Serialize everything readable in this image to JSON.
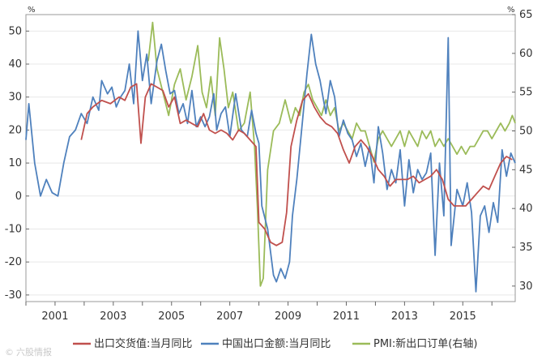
{
  "chart_data": {
    "type": "line",
    "left_axis": {
      "unit": "%",
      "range": [
        -32,
        55
      ],
      "ticks": [
        -30,
        -20,
        -10,
        0,
        10,
        20,
        30,
        40,
        50
      ]
    },
    "right_axis": {
      "unit": "%",
      "range": [
        28,
        65
      ],
      "ticks": [
        30,
        35,
        40,
        45,
        50,
        55,
        60,
        65
      ]
    },
    "x_axis": {
      "range": [
        2000.0,
        2016.8
      ],
      "ticks": [
        2001,
        2003,
        2005,
        2007,
        2009,
        2011,
        2013,
        2015
      ],
      "tick_labels": [
        "2001",
        "2003",
        "2005",
        "2007",
        "2009",
        "2011",
        "2013",
        "2015"
      ]
    },
    "grid": true,
    "legend_position": "bottom",
    "series": [
      {
        "name": "出口交货值:当月同比",
        "axis": "left",
        "color": "#c0504d",
        "points": [
          [
            2001.9,
            17
          ],
          [
            2002.1,
            25
          ],
          [
            2002.3,
            27
          ],
          [
            2002.6,
            29
          ],
          [
            2002.9,
            28
          ],
          [
            2003.2,
            30
          ],
          [
            2003.4,
            29
          ],
          [
            2003.6,
            33
          ],
          [
            2003.8,
            34
          ],
          [
            2003.95,
            16
          ],
          [
            2004.1,
            30
          ],
          [
            2004.3,
            34
          ],
          [
            2004.5,
            33
          ],
          [
            2004.7,
            32
          ],
          [
            2004.9,
            27
          ],
          [
            2005.1,
            30
          ],
          [
            2005.3,
            22
          ],
          [
            2005.5,
            23
          ],
          [
            2005.7,
            22
          ],
          [
            2005.9,
            21
          ],
          [
            2006.1,
            25
          ],
          [
            2006.3,
            20
          ],
          [
            2006.5,
            19
          ],
          [
            2006.7,
            20
          ],
          [
            2006.9,
            19
          ],
          [
            2007.1,
            17
          ],
          [
            2007.3,
            20
          ],
          [
            2007.5,
            19
          ],
          [
            2007.7,
            17
          ],
          [
            2007.9,
            15
          ],
          [
            2008.0,
            -8
          ],
          [
            2008.2,
            -10
          ],
          [
            2008.4,
            -14
          ],
          [
            2008.6,
            -15
          ],
          [
            2008.8,
            -14
          ],
          [
            2008.95,
            -5
          ],
          [
            2009.1,
            15
          ],
          [
            2009.3,
            23
          ],
          [
            2009.5,
            29
          ],
          [
            2009.7,
            31
          ],
          [
            2009.9,
            27
          ],
          [
            2010.1,
            24
          ],
          [
            2010.3,
            22
          ],
          [
            2010.5,
            21
          ],
          [
            2010.7,
            19
          ],
          [
            2010.9,
            14
          ],
          [
            2011.1,
            10
          ],
          [
            2011.3,
            15
          ],
          [
            2011.5,
            17
          ],
          [
            2011.7,
            15
          ],
          [
            2011.9,
            12
          ],
          [
            2012.1,
            8
          ],
          [
            2012.3,
            6
          ],
          [
            2012.5,
            3
          ],
          [
            2012.7,
            5
          ],
          [
            2012.9,
            5
          ],
          [
            2013.1,
            5
          ],
          [
            2013.3,
            6
          ],
          [
            2013.5,
            4
          ],
          [
            2013.7,
            5
          ],
          [
            2013.9,
            6
          ],
          [
            2014.1,
            8
          ],
          [
            2014.3,
            5
          ],
          [
            2014.5,
            -1
          ],
          [
            2014.7,
            -3
          ],
          [
            2014.9,
            -3
          ],
          [
            2015.1,
            -3
          ],
          [
            2015.3,
            -1
          ],
          [
            2015.5,
            1
          ],
          [
            2015.7,
            3
          ],
          [
            2015.9,
            2
          ],
          [
            2016.1,
            6
          ],
          [
            2016.3,
            10
          ],
          [
            2016.5,
            12
          ],
          [
            2016.7,
            11
          ]
        ]
      },
      {
        "name": "中国出口金额:当月同比",
        "axis": "left",
        "color": "#4f81bd",
        "points": [
          [
            2000.0,
            17
          ],
          [
            2000.1,
            28
          ],
          [
            2000.3,
            10
          ],
          [
            2000.5,
            0
          ],
          [
            2000.7,
            5
          ],
          [
            2000.9,
            1
          ],
          [
            2001.1,
            0
          ],
          [
            2001.3,
            10
          ],
          [
            2001.5,
            18
          ],
          [
            2001.7,
            20
          ],
          [
            2001.9,
            25
          ],
          [
            2002.1,
            22
          ],
          [
            2002.3,
            30
          ],
          [
            2002.5,
            26
          ],
          [
            2002.6,
            35
          ],
          [
            2002.8,
            31
          ],
          [
            2002.95,
            33
          ],
          [
            2003.1,
            27
          ],
          [
            2003.25,
            30
          ],
          [
            2003.4,
            32
          ],
          [
            2003.55,
            40
          ],
          [
            2003.7,
            28
          ],
          [
            2003.85,
            50
          ],
          [
            2004.0,
            35
          ],
          [
            2004.15,
            43
          ],
          [
            2004.3,
            28
          ],
          [
            2004.5,
            41
          ],
          [
            2004.65,
            46
          ],
          [
            2004.8,
            38
          ],
          [
            2004.95,
            31
          ],
          [
            2005.1,
            32
          ],
          [
            2005.25,
            25
          ],
          [
            2005.4,
            28
          ],
          [
            2005.55,
            22
          ],
          [
            2005.7,
            32
          ],
          [
            2005.85,
            21
          ],
          [
            2006.0,
            24
          ],
          [
            2006.15,
            21
          ],
          [
            2006.3,
            24
          ],
          [
            2006.45,
            31
          ],
          [
            2006.55,
            20
          ],
          [
            2006.7,
            25
          ],
          [
            2006.85,
            27
          ],
          [
            2007.0,
            18
          ],
          [
            2007.2,
            31
          ],
          [
            2007.4,
            20
          ],
          [
            2007.6,
            18
          ],
          [
            2007.75,
            26
          ],
          [
            2007.9,
            19
          ],
          [
            2008.0,
            16
          ],
          [
            2008.1,
            -3
          ],
          [
            2008.3,
            -10
          ],
          [
            2008.5,
            -24
          ],
          [
            2008.6,
            -26
          ],
          [
            2008.75,
            -22
          ],
          [
            2008.9,
            -25
          ],
          [
            2009.05,
            -20
          ],
          [
            2009.15,
            -6
          ],
          [
            2009.3,
            5
          ],
          [
            2009.5,
            23
          ],
          [
            2009.65,
            37
          ],
          [
            2009.8,
            49
          ],
          [
            2009.95,
            40
          ],
          [
            2010.1,
            35
          ],
          [
            2010.3,
            25
          ],
          [
            2010.45,
            35
          ],
          [
            2010.6,
            30
          ],
          [
            2010.75,
            18
          ],
          [
            2010.9,
            23
          ],
          [
            2011.05,
            19
          ],
          [
            2011.2,
            17
          ],
          [
            2011.35,
            12
          ],
          [
            2011.5,
            16
          ],
          [
            2011.65,
            9
          ],
          [
            2011.8,
            15
          ],
          [
            2011.95,
            4
          ],
          [
            2012.1,
            21
          ],
          [
            2012.25,
            13
          ],
          [
            2012.4,
            2
          ],
          [
            2012.55,
            8
          ],
          [
            2012.7,
            4
          ],
          [
            2012.85,
            14
          ],
          [
            2013.0,
            -3
          ],
          [
            2013.15,
            11
          ],
          [
            2013.3,
            1
          ],
          [
            2013.45,
            8
          ],
          [
            2013.6,
            5
          ],
          [
            2013.75,
            7
          ],
          [
            2013.9,
            13
          ],
          [
            2014.05,
            -18
          ],
          [
            2014.2,
            10
          ],
          [
            2014.35,
            -6
          ],
          [
            2014.5,
            48
          ],
          [
            2014.6,
            -15
          ],
          [
            2014.8,
            2
          ],
          [
            2015.0,
            -3
          ],
          [
            2015.15,
            4
          ],
          [
            2015.3,
            -5
          ],
          [
            2015.45,
            -29
          ],
          [
            2015.6,
            -6
          ],
          [
            2015.75,
            -3
          ],
          [
            2015.9,
            -11
          ],
          [
            2016.05,
            -2
          ],
          [
            2016.2,
            -8
          ],
          [
            2016.35,
            14
          ],
          [
            2016.5,
            6
          ],
          [
            2016.65,
            13
          ],
          [
            2016.8,
            10
          ]
        ]
      },
      {
        "name": "PMI:新出口订单(右轴)",
        "axis": "right",
        "color": "#9bbb59",
        "points": [
          [
            2004.2,
            59
          ],
          [
            2004.35,
            64
          ],
          [
            2004.5,
            58
          ],
          [
            2004.7,
            55
          ],
          [
            2004.9,
            52
          ],
          [
            2005.1,
            56
          ],
          [
            2005.3,
            58
          ],
          [
            2005.5,
            54
          ],
          [
            2005.7,
            57
          ],
          [
            2005.9,
            61
          ],
          [
            2006.05,
            55
          ],
          [
            2006.2,
            53
          ],
          [
            2006.35,
            57
          ],
          [
            2006.5,
            52
          ],
          [
            2006.65,
            62
          ],
          [
            2006.8,
            58
          ],
          [
            2006.95,
            53
          ],
          [
            2007.1,
            55
          ],
          [
            2007.3,
            50
          ],
          [
            2007.5,
            51
          ],
          [
            2007.7,
            55
          ],
          [
            2007.85,
            48
          ],
          [
            2007.95,
            40
          ],
          [
            2008.05,
            30
          ],
          [
            2008.15,
            31
          ],
          [
            2008.3,
            45
          ],
          [
            2008.5,
            50
          ],
          [
            2008.7,
            51
          ],
          [
            2008.9,
            54
          ],
          [
            2009.1,
            51
          ],
          [
            2009.25,
            53
          ],
          [
            2009.4,
            52
          ],
          [
            2009.55,
            55
          ],
          [
            2009.7,
            56
          ],
          [
            2009.85,
            54
          ],
          [
            2010.0,
            53
          ],
          [
            2010.15,
            52
          ],
          [
            2010.3,
            54
          ],
          [
            2010.45,
            52
          ],
          [
            2010.6,
            53
          ],
          [
            2010.75,
            50
          ],
          [
            2010.9,
            51
          ],
          [
            2011.05,
            50
          ],
          [
            2011.2,
            49
          ],
          [
            2011.35,
            51
          ],
          [
            2011.5,
            50
          ],
          [
            2011.65,
            50
          ],
          [
            2011.8,
            48
          ],
          [
            2011.95,
            46
          ],
          [
            2012.1,
            49
          ],
          [
            2012.25,
            50
          ],
          [
            2012.4,
            49
          ],
          [
            2012.55,
            48
          ],
          [
            2012.7,
            49
          ],
          [
            2012.85,
            50
          ],
          [
            2013.0,
            48
          ],
          [
            2013.15,
            50
          ],
          [
            2013.3,
            49
          ],
          [
            2013.45,
            48
          ],
          [
            2013.6,
            50
          ],
          [
            2013.75,
            49
          ],
          [
            2013.9,
            50
          ],
          [
            2014.05,
            48
          ],
          [
            2014.2,
            49
          ],
          [
            2014.35,
            48
          ],
          [
            2014.5,
            49
          ],
          [
            2014.65,
            48
          ],
          [
            2014.8,
            47
          ],
          [
            2014.95,
            48
          ],
          [
            2015.1,
            47
          ],
          [
            2015.25,
            48
          ],
          [
            2015.4,
            48
          ],
          [
            2015.55,
            49
          ],
          [
            2015.7,
            50
          ],
          [
            2015.85,
            50
          ],
          [
            2016.0,
            49
          ],
          [
            2016.15,
            50
          ],
          [
            2016.3,
            51
          ],
          [
            2016.45,
            50
          ],
          [
            2016.6,
            51
          ],
          [
            2016.7,
            52
          ],
          [
            2016.8,
            51
          ]
        ]
      }
    ]
  },
  "watermark": "六股情报"
}
